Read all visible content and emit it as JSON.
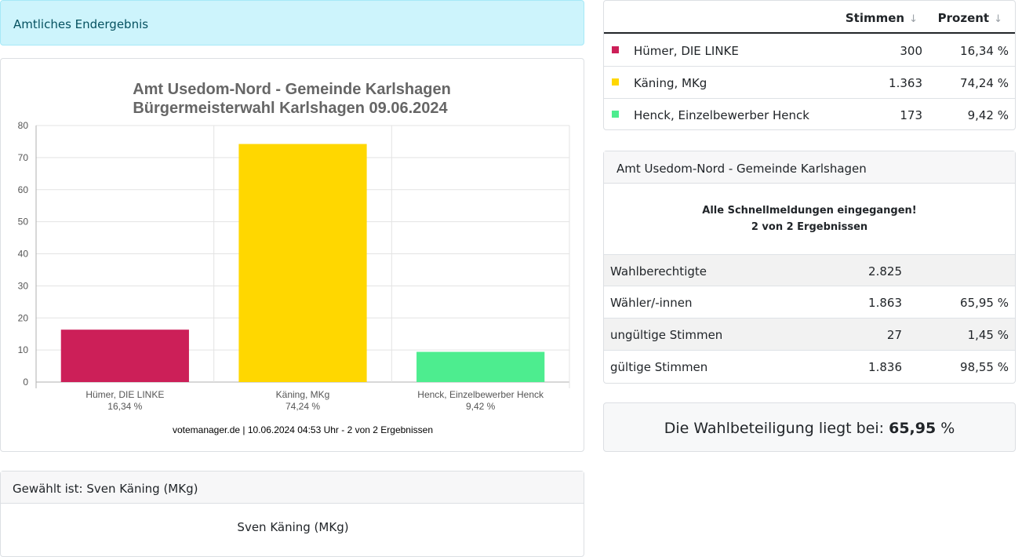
{
  "alert": {
    "text": "Amtliches Endergebnis"
  },
  "results_table": {
    "headers": {
      "votes": "Stimmen",
      "percent": "Prozent",
      "sort_glyph": "↓"
    },
    "rows": [
      {
        "name": "Hümer, DIE LINKE",
        "votes": "300",
        "percent": "16,34 %",
        "color": "#cc1f58"
      },
      {
        "name": "Käning, MKg",
        "votes": "1.363",
        "percent": "74,24 %",
        "color": "#ffd700"
      },
      {
        "name": "Henck, Einzelbewerber Henck",
        "votes": "173",
        "percent": "9,42 %",
        "color": "#4ded8f"
      }
    ]
  },
  "info": {
    "title": "Amt Usedom-Nord - Gemeinde Karlshagen",
    "status_line1": "Alle Schnellmeldungen eingegangen!",
    "status_line2": "2 von 2 Ergebnissen",
    "rows": [
      {
        "label": "Wahlberechtigte",
        "value": "2.825",
        "percent": ""
      },
      {
        "label": "Wähler/-innen",
        "value": "1.863",
        "percent": "65,95 %"
      },
      {
        "label": "ungültige Stimmen",
        "value": "27",
        "percent": "1,45 %"
      },
      {
        "label": "gültige Stimmen",
        "value": "1.836",
        "percent": "98,55 %"
      }
    ]
  },
  "turnout": {
    "prefix": "Die Wahlbeteiligung liegt bei: ",
    "value": "65,95",
    "suffix": " %"
  },
  "elected": {
    "header": "Gewählt ist: Sven Käning (MKg)",
    "name": "Sven Käning (MKg)"
  },
  "chart_data": {
    "type": "bar",
    "title": "Amt Usedom-Nord - Gemeinde Karlshagen",
    "subtitle": "Bürgermeisterwahl Karlshagen 09.06.2024",
    "categories": [
      "Hümer, DIE LINKE",
      "Käning, MKg",
      "Henck, Einzelbewerber Henck"
    ],
    "category_sublabels": [
      "16,34 %",
      "74,24 %",
      "9,42 %"
    ],
    "values": [
      16.34,
      74.24,
      9.42
    ],
    "colors": [
      "#cc1f58",
      "#ffd700",
      "#4ded8f"
    ],
    "ylim": [
      0,
      80
    ],
    "yticks": [
      0,
      10,
      20,
      30,
      40,
      50,
      60,
      70,
      80
    ],
    "grid": true,
    "footer": "votemanager.de | 10.06.2024 04:53 Uhr - 2 von 2 Ergebnissen"
  }
}
